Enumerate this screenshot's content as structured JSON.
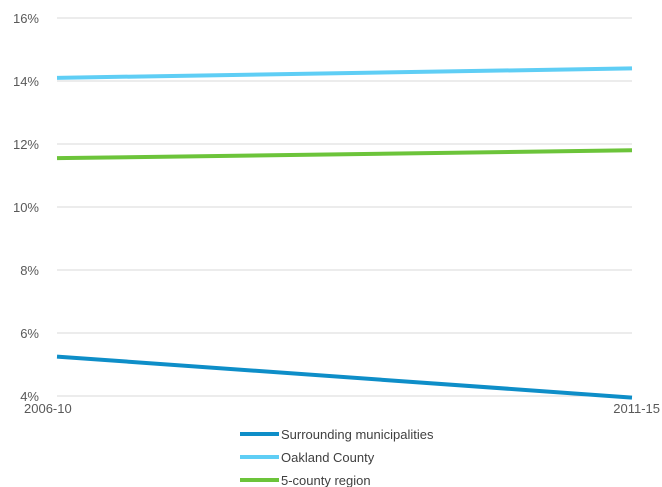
{
  "chart_data": {
    "type": "line",
    "title": "",
    "xlabel": "",
    "ylabel": "",
    "categories": [
      "2006-10",
      "2011-15"
    ],
    "ylim": [
      4,
      16
    ],
    "yticks": [
      4,
      6,
      8,
      10,
      12,
      14,
      16
    ],
    "ytick_labels": [
      "4%",
      "6%",
      "8%",
      "10%",
      "12%",
      "14%",
      "16%"
    ],
    "grid": true,
    "legend_position": "bottom",
    "series": [
      {
        "name": "Surrounding municipalities",
        "values": [
          5.25,
          3.95
        ],
        "color": "#0e8ec8"
      },
      {
        "name": "Oakland County",
        "values": [
          14.1,
          14.4
        ],
        "color": "#5fcef5"
      },
      {
        "name": "5-county region",
        "values": [
          11.55,
          11.8
        ],
        "color": "#6cc43a"
      }
    ]
  }
}
